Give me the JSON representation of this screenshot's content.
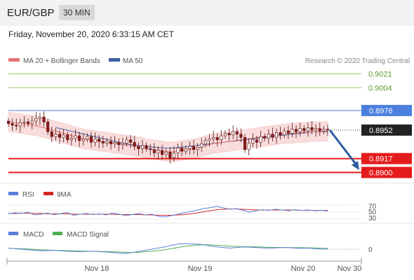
{
  "header": {
    "pair": "EUR/GBP",
    "timeframe": "30 MIN"
  },
  "datetime": "Friday, November 20, 2020 6:33:15 AM CET",
  "credit": "Research © 2020 Trading Central",
  "colors": {
    "resistance_green": "#9ccc65",
    "pivot_blue": "#4a7fe0",
    "support_red": "#e31b1b",
    "last_price": "#222222",
    "ma20": "#e57373",
    "ma50": "#3f5fa0",
    "bb_fill": "#f8d7d7",
    "arrow": "#2f5f9e",
    "candle_up": "#ffffff",
    "candle_down": "#8b1a1a",
    "rsi": "#5b7fd9",
    "rsi_ma": "#d62828",
    "macd": "#5b7fd9",
    "macd_signal": "#4caf50"
  },
  "chart_data": [
    {
      "type": "candlestick",
      "legend": [
        {
          "label": "MA 20 + Bollinger Bands",
          "color": "#e57373"
        },
        {
          "label": "MA 50",
          "color": "#3f5fa0"
        }
      ],
      "ylim": [
        0.889,
        0.903
      ],
      "levels": [
        {
          "value": 0.9021,
          "label": "0.9021",
          "kind": "resistance"
        },
        {
          "value": 0.9004,
          "label": "0.9004",
          "kind": "resistance"
        },
        {
          "value": 0.8976,
          "label": "0.8976",
          "kind": "pivot"
        },
        {
          "value": 0.8952,
          "label": "0.8952",
          "kind": "last"
        },
        {
          "value": 0.8917,
          "label": "0.8917",
          "kind": "support"
        },
        {
          "value": 0.89,
          "label": "0.8900",
          "kind": "support"
        }
      ],
      "close": [
        0.896,
        0.8958,
        0.8957,
        0.8961,
        0.8962,
        0.896,
        0.8963,
        0.8966,
        0.8968,
        0.8962,
        0.895,
        0.8944,
        0.8947,
        0.8943,
        0.8946,
        0.894,
        0.8942,
        0.8945,
        0.8939,
        0.8941,
        0.8944,
        0.8937,
        0.8941,
        0.8938,
        0.8936,
        0.8938,
        0.8935,
        0.8937,
        0.8934,
        0.8936,
        0.894,
        0.8937,
        0.8932,
        0.8929,
        0.8933,
        0.8929,
        0.8928,
        0.8924,
        0.8927,
        0.8922,
        0.8925,
        0.8918,
        0.8924,
        0.893,
        0.8926,
        0.8929,
        0.8932,
        0.8928,
        0.8931,
        0.8935,
        0.8939,
        0.8941,
        0.8943,
        0.894,
        0.8945,
        0.8948,
        0.8946,
        0.895,
        0.8947,
        0.8943,
        0.8928,
        0.8936,
        0.894,
        0.8937,
        0.8944,
        0.8942,
        0.8947,
        0.8943,
        0.8949,
        0.8946,
        0.8951,
        0.8948,
        0.8953,
        0.895,
        0.8954,
        0.8951,
        0.8955,
        0.8952,
        0.8954,
        0.8951,
        0.8953,
        0.8952
      ],
      "ma20": [
        0.8962,
        0.8961,
        0.896,
        0.8959,
        0.8958,
        0.8957,
        0.8955,
        0.8953,
        0.8951,
        0.8949,
        0.8947,
        0.8945,
        0.8943,
        0.8941,
        0.894,
        0.8939,
        0.8938,
        0.8937,
        0.8936,
        0.8935,
        0.8934,
        0.8933,
        0.8932,
        0.8931,
        0.8929,
        0.8928,
        0.8927,
        0.8926,
        0.8925,
        0.8926,
        0.8927,
        0.8928,
        0.8929,
        0.8931,
        0.8933,
        0.8935,
        0.8936,
        0.8937,
        0.8938,
        0.8939,
        0.894,
        0.8941,
        0.8942,
        0.8943,
        0.8944,
        0.8945,
        0.8946,
        0.8947,
        0.8948,
        0.8948,
        0.8949,
        0.8949,
        0.895,
        0.895,
        0.895,
        0.8951
      ],
      "ma50": [
        0.8955,
        0.8953,
        0.8951,
        0.8949,
        0.8947,
        0.8945,
        0.8943,
        0.8941,
        0.8939,
        0.8937,
        0.8935,
        0.8934,
        0.8933,
        0.8932,
        0.8931,
        0.893,
        0.893,
        0.893,
        0.8931,
        0.8932,
        0.8933,
        0.8934,
        0.8935,
        0.8936,
        0.8937,
        0.8938,
        0.8939,
        0.894,
        0.8941,
        0.8942,
        0.8943,
        0.8944,
        0.8945,
        0.8946,
        0.8947,
        0.8948,
        0.8949,
        0.895,
        0.895,
        0.895
      ]
    },
    {
      "type": "line",
      "legend": [
        {
          "label": "RSI",
          "color": "#5b7fd9"
        },
        {
          "label": "9MA",
          "color": "#d62828"
        }
      ],
      "ylim": [
        20,
        80
      ],
      "ticks": [
        "70",
        "50",
        "30"
      ],
      "rsi": [
        45,
        48,
        46,
        50,
        42,
        44,
        47,
        43,
        45,
        49,
        41,
        44,
        46,
        43,
        45,
        42,
        47,
        44,
        40,
        43,
        46,
        42,
        44,
        38,
        36,
        40,
        44,
        48,
        52,
        56,
        60,
        63,
        66,
        62,
        58,
        60,
        55,
        50,
        54,
        57,
        55,
        58,
        56,
        54,
        57,
        55,
        56,
        54,
        55,
        53
      ],
      "ma": [
        46,
        46,
        47,
        47,
        46,
        46,
        45,
        45,
        45,
        45,
        44,
        44,
        44,
        44,
        44,
        44,
        44,
        43,
        43,
        43,
        43,
        42,
        42,
        41,
        41,
        41,
        42,
        43,
        45,
        48,
        51,
        54,
        57,
        58,
        59,
        59,
        58,
        57,
        56,
        56,
        56,
        56,
        56,
        56,
        56,
        55,
        55,
        55,
        55,
        55
      ]
    },
    {
      "type": "line",
      "legend": [
        {
          "label": "MACD",
          "color": "#5b7fd9"
        },
        {
          "label": "MACD Signal",
          "color": "#4caf50"
        }
      ],
      "ylim": [
        -1,
        1
      ],
      "ticks": [
        "0"
      ],
      "macd": [
        0.1,
        0.05,
        0.0,
        -0.05,
        -0.1,
        -0.15,
        -0.12,
        -0.1,
        -0.14,
        -0.18,
        -0.2,
        -0.22,
        -0.2,
        -0.18,
        -0.22,
        -0.25,
        -0.3,
        -0.35,
        -0.38,
        -0.3,
        -0.2,
        -0.1,
        0.0,
        0.1,
        0.2,
        0.35,
        0.45,
        0.5,
        0.48,
        0.45,
        0.4,
        0.3,
        0.2,
        0.15,
        0.1,
        0.15,
        0.2,
        0.18,
        0.15,
        0.12,
        0.1,
        0.12,
        0.15,
        0.14,
        0.1,
        0.08,
        0.1,
        0.05,
        0.0,
        0.02
      ],
      "signal": [
        0.08,
        0.06,
        0.04,
        0.02,
        -0.02,
        -0.05,
        -0.08,
        -0.1,
        -0.11,
        -0.13,
        -0.15,
        -0.17,
        -0.18,
        -0.19,
        -0.2,
        -0.21,
        -0.23,
        -0.25,
        -0.28,
        -0.29,
        -0.27,
        -0.23,
        -0.18,
        -0.12,
        -0.05,
        0.05,
        0.15,
        0.25,
        0.32,
        0.37,
        0.39,
        0.38,
        0.35,
        0.31,
        0.27,
        0.24,
        0.23,
        0.22,
        0.21,
        0.19,
        0.17,
        0.16,
        0.15,
        0.15,
        0.14,
        0.13,
        0.12,
        0.11,
        0.09,
        0.07
      ]
    }
  ],
  "x_axis": {
    "ticks": [
      "Nov 18",
      "Nov 19",
      "Nov 20",
      "Nov 30"
    ]
  }
}
